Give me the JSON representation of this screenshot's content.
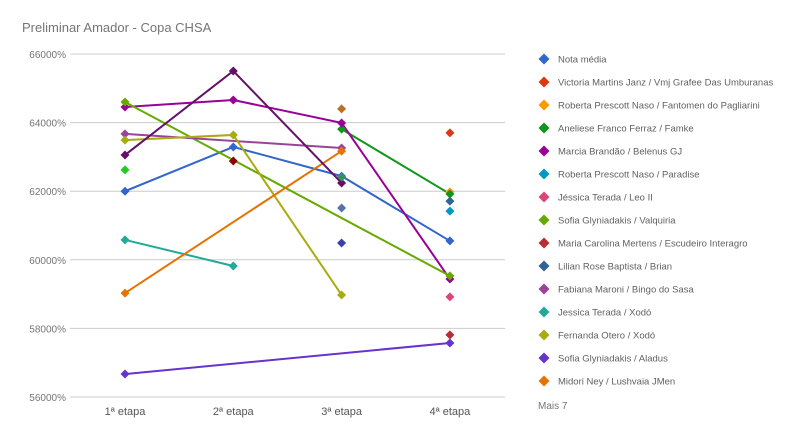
{
  "chart_data": {
    "type": "line",
    "title": "Preliminar Amador - Copa CHSA",
    "categories": [
      "1ª etapa",
      "2ª etapa",
      "3ª etapa",
      "4ª etapa"
    ],
    "ylim": [
      56000,
      66000
    ],
    "yticks": [
      "56000%",
      "58000%",
      "60000%",
      "62000%",
      "64000%",
      "66000%"
    ],
    "ytick_values": [
      56000,
      58000,
      60000,
      62000,
      64000,
      66000
    ],
    "grid": true,
    "legend_position": "right",
    "legend_more": "Mais 7",
    "series": [
      {
        "name": "Nota média",
        "color": "#3366cc",
        "values": [
          62000,
          63290,
          62440,
          60550
        ]
      },
      {
        "name": "Victoria Martins Janz / Vmj Grafee Das Umburanas",
        "color": "#dc3912",
        "values": [
          null,
          null,
          null,
          63700
        ]
      },
      {
        "name": "Roberta Prescott Naso / Fantomen do Pagliarini",
        "color": "#ff9900",
        "values": [
          null,
          null,
          null,
          61980
        ]
      },
      {
        "name": "Aneliese Franco Ferraz / Famke",
        "color": "#109618",
        "values": [
          null,
          null,
          63810,
          61920
        ]
      },
      {
        "name": "Marcia Brandão / Belenus GJ",
        "color": "#990099",
        "values": [
          64455,
          64660,
          63990,
          59440
        ]
      },
      {
        "name": "Roberta Prescott Naso / Paradise",
        "color": "#0099c6",
        "values": [
          null,
          null,
          null,
          61420
        ]
      },
      {
        "name": "Jéssica Terada / Leo II",
        "color": "#dd4477",
        "values": [
          null,
          null,
          null,
          58920
        ]
      },
      {
        "name": "Sofia Glyniadakis / Valquiria",
        "color": "#66aa00",
        "values": [
          64600,
          null,
          null,
          59530
        ]
      },
      {
        "name": "Maria Carolina Mertens / Escudeiro Interagro",
        "color": "#b82e2e",
        "values": [
          null,
          null,
          null,
          57810
        ]
      },
      {
        "name": "Lilian Rose Baptista / Brian",
        "color": "#316395",
        "values": [
          null,
          null,
          null,
          61710
        ]
      },
      {
        "name": "Fabiana Maroni / Bingo do Sasa",
        "color": "#994499",
        "values": [
          63670,
          null,
          63260,
          null
        ]
      },
      {
        "name": "Jessica Terada / Xodó",
        "color": "#22aa99",
        "values": [
          60580,
          59820,
          null,
          null
        ]
      },
      {
        "name": "Fernanda Otero / Xodó",
        "color": "#aaaa11",
        "values": [
          63490,
          63640,
          58975,
          null
        ]
      },
      {
        "name": "Sofia Glyniadakis / Aladus",
        "color": "#6633cc",
        "values": [
          56670,
          null,
          null,
          57575
        ]
      },
      {
        "name": " Midori Ney / Lushvaia JMen",
        "color": "#e67300",
        "values": [
          59030,
          null,
          63170,
          null
        ]
      },
      {
        "color": "#651067",
        "values": [
          63056,
          65505,
          62240,
          null
        ]
      },
      {
        "color": "#22cc22",
        "values": [
          62620,
          null,
          null,
          null
        ]
      },
      {
        "color": "#8b0707",
        "values": [
          null,
          62880,
          null,
          null
        ]
      },
      {
        "color": "#b77322",
        "values": [
          null,
          null,
          64400,
          null
        ]
      },
      {
        "color": "#329262",
        "values": [
          null,
          null,
          62410,
          null
        ]
      },
      {
        "color": "#5574a6",
        "values": [
          null,
          null,
          61510,
          null
        ]
      },
      {
        "color": "#3b3eac",
        "values": [
          null,
          null,
          60490,
          null
        ]
      }
    ]
  }
}
